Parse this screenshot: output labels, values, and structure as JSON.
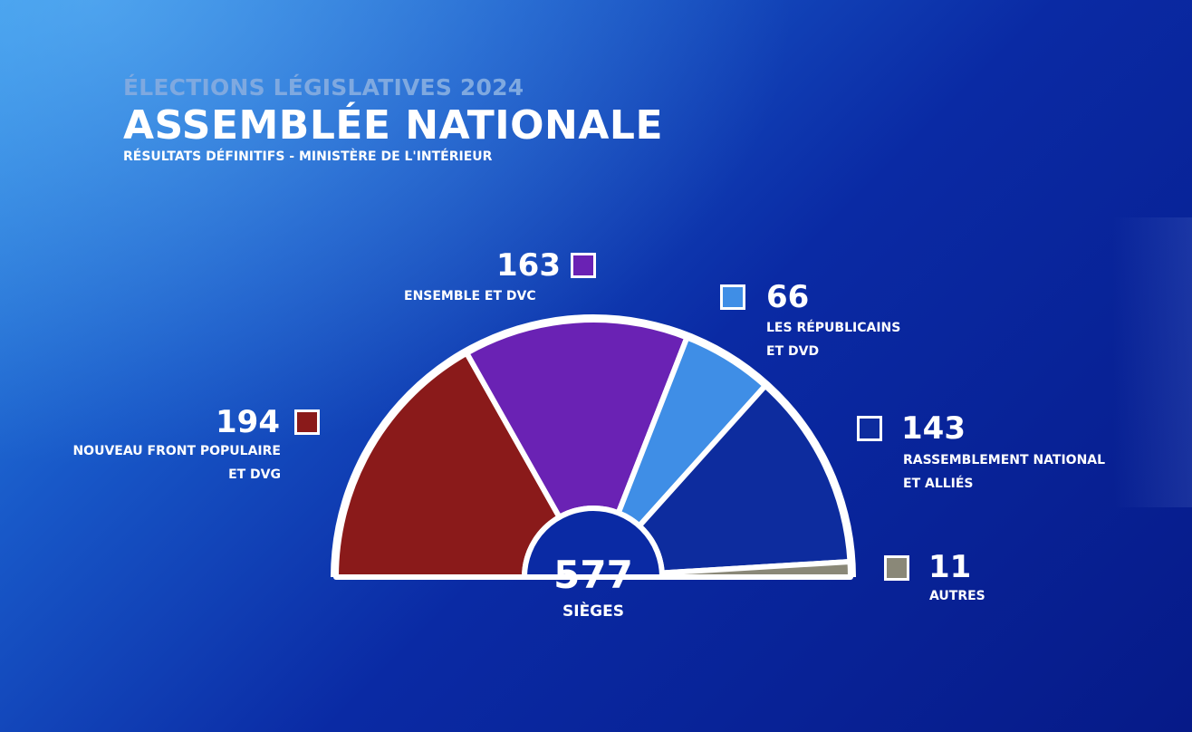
{
  "header": {
    "supertitle": "ÉLECTIONS LÉGISLATIVES 2024",
    "title": "ASSEMBLÉE NATIONALE",
    "source": "RÉSULTATS DÉFINITIFS - MINISTÈRE DE L'INTÉRIEUR"
  },
  "total": {
    "value": "577",
    "label": "SIÈGES"
  },
  "parties": [
    {
      "seats": "194",
      "name_line1": "NOUVEAU FRONT POPULAIRE",
      "name_line2": "ET DVG",
      "color": "#8a1a1a"
    },
    {
      "seats": "163",
      "name_line1": "ENSEMBLE ET DVC",
      "name_line2": "",
      "color": "#6a22b4"
    },
    {
      "seats": "66",
      "name_line1": "LES RÉPUBLICAINS",
      "name_line2": "ET DVD",
      "color": "#3f8ee6"
    },
    {
      "seats": "143",
      "name_line1": "RASSEMBLEMENT NATIONAL",
      "name_line2": "ET ALLIÉS",
      "color": "#0d2c9e"
    },
    {
      "seats": "11",
      "name_line1": "AUTRES",
      "name_line2": "",
      "color": "#8a8878"
    }
  ],
  "chart_data": {
    "type": "pie",
    "variant": "hemicycle",
    "categories": [
      "NOUVEAU FRONT POPULAIRE ET DVG",
      "ENSEMBLE ET DVC",
      "LES RÉPUBLICAINS ET DVD",
      "RASSEMBLEMENT NATIONAL ET ALLIÉS",
      "AUTRES"
    ],
    "values": [
      194,
      163,
      66,
      143,
      11
    ],
    "colors": [
      "#8a1a1a",
      "#6a22b4",
      "#3f8ee6",
      "#0d2c9e",
      "#8a8878"
    ],
    "total": 577,
    "legend": "labels next to each segment"
  }
}
